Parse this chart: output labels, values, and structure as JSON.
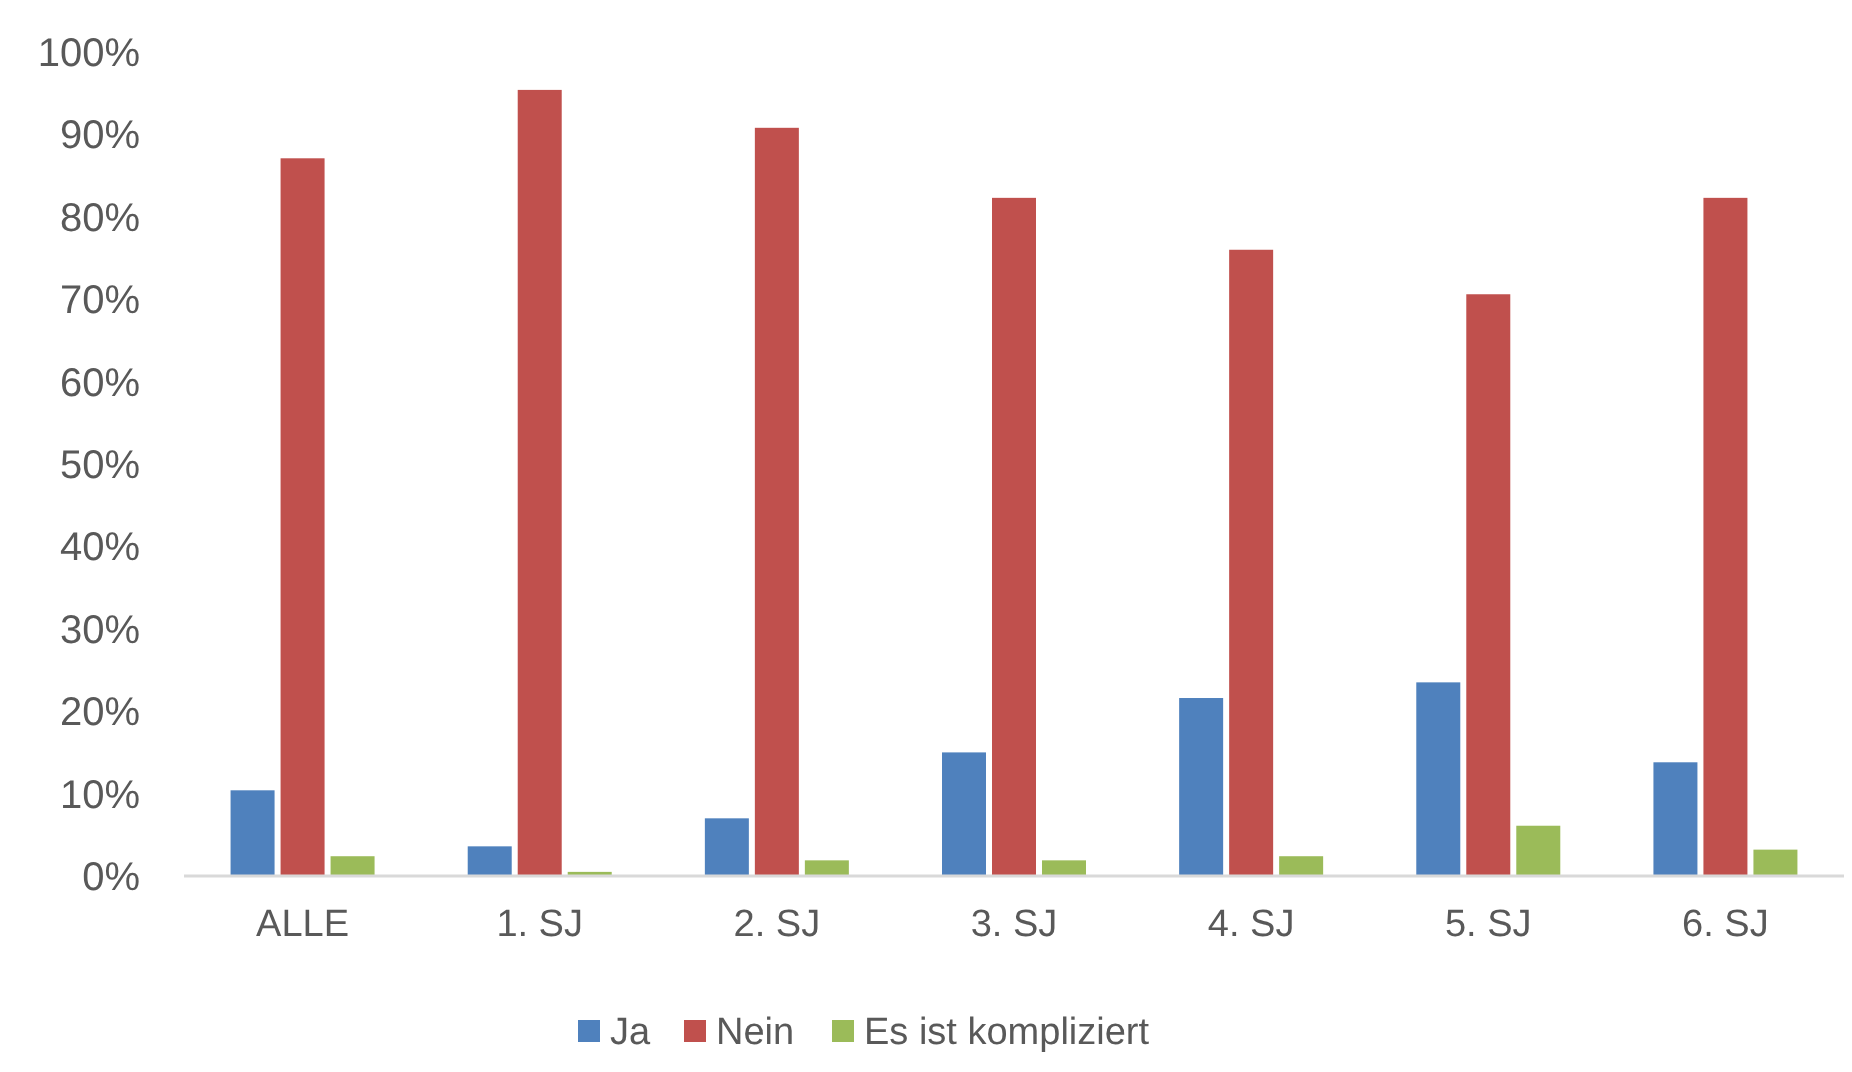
{
  "chart_data": {
    "type": "bar",
    "categories": [
      "ALLE",
      "1. SJ",
      "2. SJ",
      "3. SJ",
      "4. SJ",
      "5. SJ",
      "6. SJ"
    ],
    "series": [
      {
        "name": "Ja",
        "color": "#4f81bd",
        "values": [
          10.4,
          3.6,
          7.0,
          15.0,
          21.6,
          23.5,
          13.8
        ]
      },
      {
        "name": "Nein",
        "color": "#c0504d",
        "values": [
          87.1,
          95.4,
          90.8,
          82.3,
          76.0,
          70.6,
          82.3
        ]
      },
      {
        "name": "Es ist kompliziert",
        "color": "#9bbb59",
        "values": [
          2.4,
          0.5,
          1.9,
          1.9,
          2.4,
          6.1,
          3.2
        ]
      }
    ],
    "ylim": [
      0,
      100
    ],
    "yticks": [
      {
        "value": 0,
        "label": "0%"
      },
      {
        "value": 10,
        "label": "10%"
      },
      {
        "value": 20,
        "label": "20%"
      },
      {
        "value": 30,
        "label": "30%"
      },
      {
        "value": 40,
        "label": "40%"
      },
      {
        "value": 50,
        "label": "50%"
      },
      {
        "value": 60,
        "label": "60%"
      },
      {
        "value": 70,
        "label": "70%"
      },
      {
        "value": 80,
        "label": "80%"
      },
      {
        "value": 90,
        "label": "90%"
      },
      {
        "value": 100,
        "label": "100%"
      }
    ],
    "legend": "bottom"
  }
}
